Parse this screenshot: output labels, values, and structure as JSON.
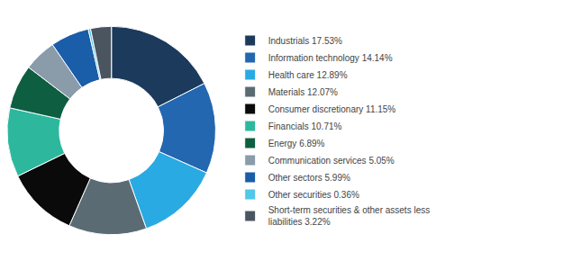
{
  "chart_data": {
    "type": "pie",
    "categories": [
      "Industrials 17.53%",
      "Information technology 14.14%",
      "Health care 12.89%",
      "Materials 12.07%",
      "Consumer discretionary 11.15%",
      "Financials 10.71%",
      "Energy 6.89%",
      "Communication services 5.05%",
      "Other sectors 5.99%",
      "Other securities 0.36%",
      "Short-term securities & other assets less\nliabilities 3.22%"
    ],
    "values": [
      17.53,
      14.14,
      12.89,
      12.07,
      11.15,
      10.71,
      6.89,
      5.05,
      5.99,
      0.36,
      3.22
    ],
    "colors": [
      "#1b3a5c",
      "#2267b0",
      "#29aae2",
      "#5b6b74",
      "#0a0a0a",
      "#2db89e",
      "#0e5e42",
      "#8a9baa",
      "#1a5da8",
      "#50c8e8",
      "#4a5560"
    ],
    "legend": "right"
  }
}
